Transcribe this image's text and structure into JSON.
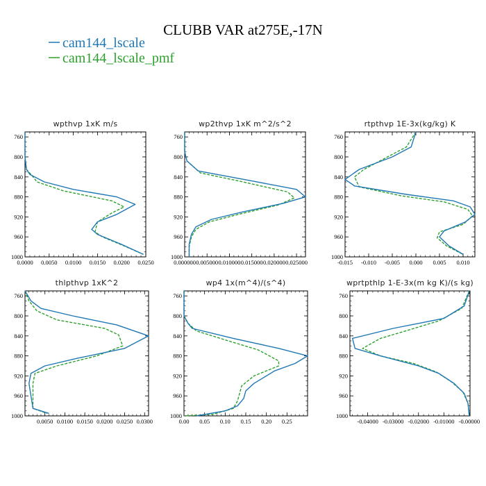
{
  "title": "CLUBB VAR at275E,-17N",
  "legend": [
    {
      "name": "cam144_lscale",
      "color": "#1f77b4",
      "dash": "solid"
    },
    {
      "name": "cam144_lscale_pmf",
      "color": "#2ca02c",
      "dash": "dashed"
    }
  ],
  "colors": {
    "lscale": "#1f77b4",
    "pmf": "#2ca02c",
    "axis": "#000000"
  },
  "chart_data": [
    {
      "type": "line",
      "title": "wpthvp  1xK m/s",
      "xlim": [
        0,
        0.025
      ],
      "ylim": [
        1000,
        750
      ],
      "xticks": [
        0,
        0.005,
        0.01,
        0.015,
        0.02,
        0.025
      ],
      "xtick_labels": [
        "0.0000",
        "0.0050",
        "0.0100",
        "0.0150",
        "0.0200",
        "0.0250"
      ],
      "yticks": [
        760,
        800,
        840,
        880,
        920,
        960,
        1000
      ],
      "ytick_labels": [
        "760",
        "800",
        "840",
        "880",
        "920",
        "960",
        "1000"
      ],
      "series": [
        {
          "key": "lscale",
          "points": [
            [
              0.0,
              750
            ],
            [
              0.0,
              800
            ],
            [
              0.0003,
              825
            ],
            [
              0.001,
              835
            ],
            [
              0.004,
              850
            ],
            [
              0.01,
              865
            ],
            [
              0.019,
              880
            ],
            [
              0.0228,
              895
            ],
            [
              0.019,
              915
            ],
            [
              0.015,
              930
            ],
            [
              0.0138,
              945
            ],
            [
              0.015,
              955
            ],
            [
              0.02,
              975
            ],
            [
              0.0245,
              995
            ]
          ]
        },
        {
          "key": "pmf",
          "points": [
            [
              0.0,
              750
            ],
            [
              0.0,
              800
            ],
            [
              0.0003,
              825
            ],
            [
              0.0015,
              838
            ],
            [
              0.0025,
              850
            ],
            [
              0.008,
              868
            ],
            [
              0.018,
              888
            ],
            [
              0.0205,
              900
            ],
            [
              0.018,
              912
            ],
            [
              0.015,
              930
            ],
            [
              0.0145,
              950
            ],
            [
              0.016,
              960
            ],
            [
              0.0205,
              978
            ],
            [
              0.0245,
              995
            ]
          ]
        }
      ]
    },
    {
      "type": "line",
      "title": "wp2thvp  1xK m^2/s^2",
      "xlim": [
        0,
        0.027
      ],
      "ylim": [
        1000,
        750
      ],
      "xticks": [
        0,
        0.005,
        0.01,
        0.015,
        0.02,
        0.025
      ],
      "xtick_labels": [
        "0.000000",
        "0.005000",
        "0.010000",
        "0.015000",
        "0.020000",
        "0.025000"
      ],
      "yticks": [
        760,
        800,
        840,
        880,
        920,
        960,
        1000
      ],
      "ytick_labels": [
        "760",
        "800",
        "840",
        "880",
        "920",
        "960",
        "1000"
      ],
      "series": [
        {
          "key": "lscale",
          "points": [
            [
              0.0,
              750
            ],
            [
              0.0,
              790
            ],
            [
              0.0005,
              808
            ],
            [
              0.003,
              828
            ],
            [
              0.015,
              848
            ],
            [
              0.025,
              865
            ],
            [
              0.027,
              880
            ],
            [
              0.022,
              893
            ],
            [
              0.013,
              910
            ],
            [
              0.006,
              925
            ],
            [
              0.0025,
              940
            ],
            [
              0.0015,
              955
            ],
            [
              0.001,
              975
            ],
            [
              0.001,
              1000
            ]
          ]
        },
        {
          "key": "pmf",
          "points": [
            [
              0.0,
              750
            ],
            [
              0.0,
              790
            ],
            [
              0.0005,
              808
            ],
            [
              0.0035,
              832
            ],
            [
              0.012,
              848
            ],
            [
              0.023,
              870
            ],
            [
              0.0245,
              882
            ],
            [
              0.021,
              896
            ],
            [
              0.012,
              915
            ],
            [
              0.0055,
              930
            ],
            [
              0.0025,
              945
            ],
            [
              0.0015,
              960
            ],
            [
              0.001,
              980
            ],
            [
              0.001,
              1000
            ]
          ]
        }
      ]
    },
    {
      "type": "line",
      "title": "rtpthvp  1E-3x(kg/kg) K",
      "xlim": [
        -0.015,
        0.0125
      ],
      "ylim": [
        1000,
        750
      ],
      "xticks": [
        -0.015,
        -0.01,
        -0.005,
        0,
        0.005,
        0.01
      ],
      "xtick_labels": [
        "-0.015",
        "-0.010",
        "-0.005",
        "0.000",
        "0.005",
        "0.010"
      ],
      "yticks": [
        760,
        800,
        840,
        880,
        920,
        960,
        1000
      ],
      "ytick_labels": [
        "760",
        "800",
        "840",
        "880",
        "920",
        "960",
        "1000"
      ],
      "series": [
        {
          "key": "lscale",
          "points": [
            [
              0.0,
              750
            ],
            [
              -0.001,
              780
            ],
            [
              -0.005,
              800
            ],
            [
              -0.012,
              825
            ],
            [
              -0.015,
              845
            ],
            [
              -0.013,
              858
            ],
            [
              -0.002,
              875
            ],
            [
              0.008,
              888
            ],
            [
              0.0115,
              900
            ],
            [
              0.0125,
              915
            ],
            [
              0.0105,
              930
            ],
            [
              0.006,
              948
            ],
            [
              0.005,
              960
            ],
            [
              0.007,
              978
            ],
            [
              0.01,
              995
            ]
          ]
        },
        {
          "key": "pmf",
          "points": [
            [
              0.0,
              750
            ],
            [
              -0.002,
              780
            ],
            [
              -0.007,
              805
            ],
            [
              -0.011,
              825
            ],
            [
              -0.013,
              840
            ],
            [
              -0.012,
              860
            ],
            [
              -0.003,
              878
            ],
            [
              0.006,
              890
            ],
            [
              0.011,
              905
            ],
            [
              0.012,
              918
            ],
            [
              0.01,
              935
            ],
            [
              0.005,
              950
            ],
            [
              0.0045,
              962
            ],
            [
              0.0065,
              978
            ],
            [
              0.01,
              995
            ]
          ]
        }
      ]
    },
    {
      "type": "line",
      "title": "thlpthvp  1xK^2",
      "xlim": [
        0,
        0.031
      ],
      "ylim": [
        1000,
        750
      ],
      "xticks": [
        0.005,
        0.01,
        0.015,
        0.02,
        0.025,
        0.03
      ],
      "xtick_labels": [
        "0.0050",
        "0.0100",
        "0.0150",
        "0.0200",
        "0.0250",
        "0.0300"
      ],
      "yticks": [
        760,
        800,
        840,
        880,
        920,
        960,
        1000
      ],
      "ytick_labels": [
        "760",
        "800",
        "840",
        "880",
        "920",
        "960",
        "1000"
      ],
      "series": [
        {
          "key": "lscale",
          "points": [
            [
              0.0,
              750
            ],
            [
              0.0015,
              770
            ],
            [
              0.004,
              785
            ],
            [
              0.012,
              800
            ],
            [
              0.023,
              818
            ],
            [
              0.031,
              840
            ],
            [
              0.025,
              865
            ],
            [
              0.013,
              885
            ],
            [
              0.005,
              900
            ],
            [
              0.0015,
              915
            ],
            [
              0.001,
              935
            ],
            [
              0.0015,
              960
            ],
            [
              0.002,
              985
            ],
            [
              0.006,
              995
            ]
          ]
        },
        {
          "key": "pmf",
          "points": [
            [
              0.0,
              750
            ],
            [
              0.001,
              770
            ],
            [
              0.003,
              790
            ],
            [
              0.008,
              808
            ],
            [
              0.02,
              825
            ],
            [
              0.0235,
              838
            ],
            [
              0.0245,
              860
            ],
            [
              0.018,
              880
            ],
            [
              0.008,
              900
            ],
            [
              0.0025,
              915
            ],
            [
              0.002,
              935
            ],
            [
              0.002,
              960
            ],
            [
              0.002,
              985
            ],
            [
              0.0055,
              995
            ]
          ]
        }
      ]
    },
    {
      "type": "line",
      "title": "wp4  1x(m^4)/(s^4)",
      "xlim": [
        0,
        0.3
      ],
      "ylim": [
        1000,
        750
      ],
      "xticks": [
        0,
        0.05,
        0.1,
        0.15,
        0.2,
        0.25
      ],
      "xtick_labels": [
        "0.00",
        "0.05",
        "0.10",
        "0.15",
        "0.20",
        "0.25"
      ],
      "yticks": [
        760,
        800,
        840,
        880,
        920,
        960,
        1000
      ],
      "ytick_labels": [
        "760",
        "800",
        "840",
        "880",
        "920",
        "960",
        "1000"
      ],
      "series": [
        {
          "key": "lscale",
          "points": [
            [
              0.0,
              750
            ],
            [
              0.0,
              800
            ],
            [
              0.01,
              815
            ],
            [
              0.02,
              825
            ],
            [
              0.12,
              845
            ],
            [
              0.23,
              865
            ],
            [
              0.3,
              880
            ],
            [
              0.27,
              895
            ],
            [
              0.22,
              910
            ],
            [
              0.17,
              935
            ],
            [
              0.15,
              950
            ],
            [
              0.145,
              965
            ],
            [
              0.13,
              980
            ],
            [
              0.1,
              990
            ],
            [
              0.03,
              1000
            ]
          ]
        },
        {
          "key": "pmf",
          "points": [
            [
              0.0,
              750
            ],
            [
              0.0,
              800
            ],
            [
              0.01,
              815
            ],
            [
              0.03,
              830
            ],
            [
              0.1,
              848
            ],
            [
              0.18,
              868
            ],
            [
              0.23,
              890
            ],
            [
              0.23,
              900
            ],
            [
              0.17,
              920
            ],
            [
              0.14,
              940
            ],
            [
              0.135,
              955
            ],
            [
              0.13,
              970
            ],
            [
              0.12,
              985
            ],
            [
              0.07,
              997
            ],
            [
              0.0,
              1000
            ]
          ]
        }
      ]
    },
    {
      "type": "line",
      "title": "wprtpthlp  1-E-3x(m kg K)/(s kg)",
      "xlim": [
        -0.047,
        0.0003
      ],
      "ylim": [
        1000,
        750
      ],
      "xticks": [
        -0.04,
        -0.03,
        -0.02,
        -0.01,
        0
      ],
      "xtick_labels": [
        "-0.04000",
        "-0.03000",
        "-0.02000",
        "-0.01000",
        "-0.00000"
      ],
      "yticks": [
        760,
        800,
        840,
        880,
        920,
        960,
        1000
      ],
      "ytick_labels": [
        "760",
        "800",
        "840",
        "880",
        "920",
        "960",
        "1000"
      ],
      "series": [
        {
          "key": "lscale",
          "points": [
            [
              0.0,
              750
            ],
            [
              -0.002,
              780
            ],
            [
              -0.01,
              805
            ],
            [
              -0.03,
              825
            ],
            [
              -0.046,
              845
            ],
            [
              -0.045,
              865
            ],
            [
              -0.035,
              880
            ],
            [
              -0.02,
              900
            ],
            [
              -0.012,
              915
            ],
            [
              -0.006,
              935
            ],
            [
              -0.002,
              955
            ],
            [
              -0.0005,
              975
            ],
            [
              0.0,
              1000
            ]
          ]
        },
        {
          "key": "pmf",
          "points": [
            [
              0.0,
              750
            ],
            [
              -0.003,
              785
            ],
            [
              -0.012,
              810
            ],
            [
              -0.025,
              830
            ],
            [
              -0.035,
              845
            ],
            [
              -0.042,
              865
            ],
            [
              -0.035,
              880
            ],
            [
              -0.022,
              895
            ],
            [
              -0.013,
              912
            ],
            [
              -0.007,
              932
            ],
            [
              -0.0025,
              952
            ],
            [
              -0.0005,
              975
            ],
            [
              0.0,
              1000
            ]
          ]
        }
      ]
    }
  ]
}
